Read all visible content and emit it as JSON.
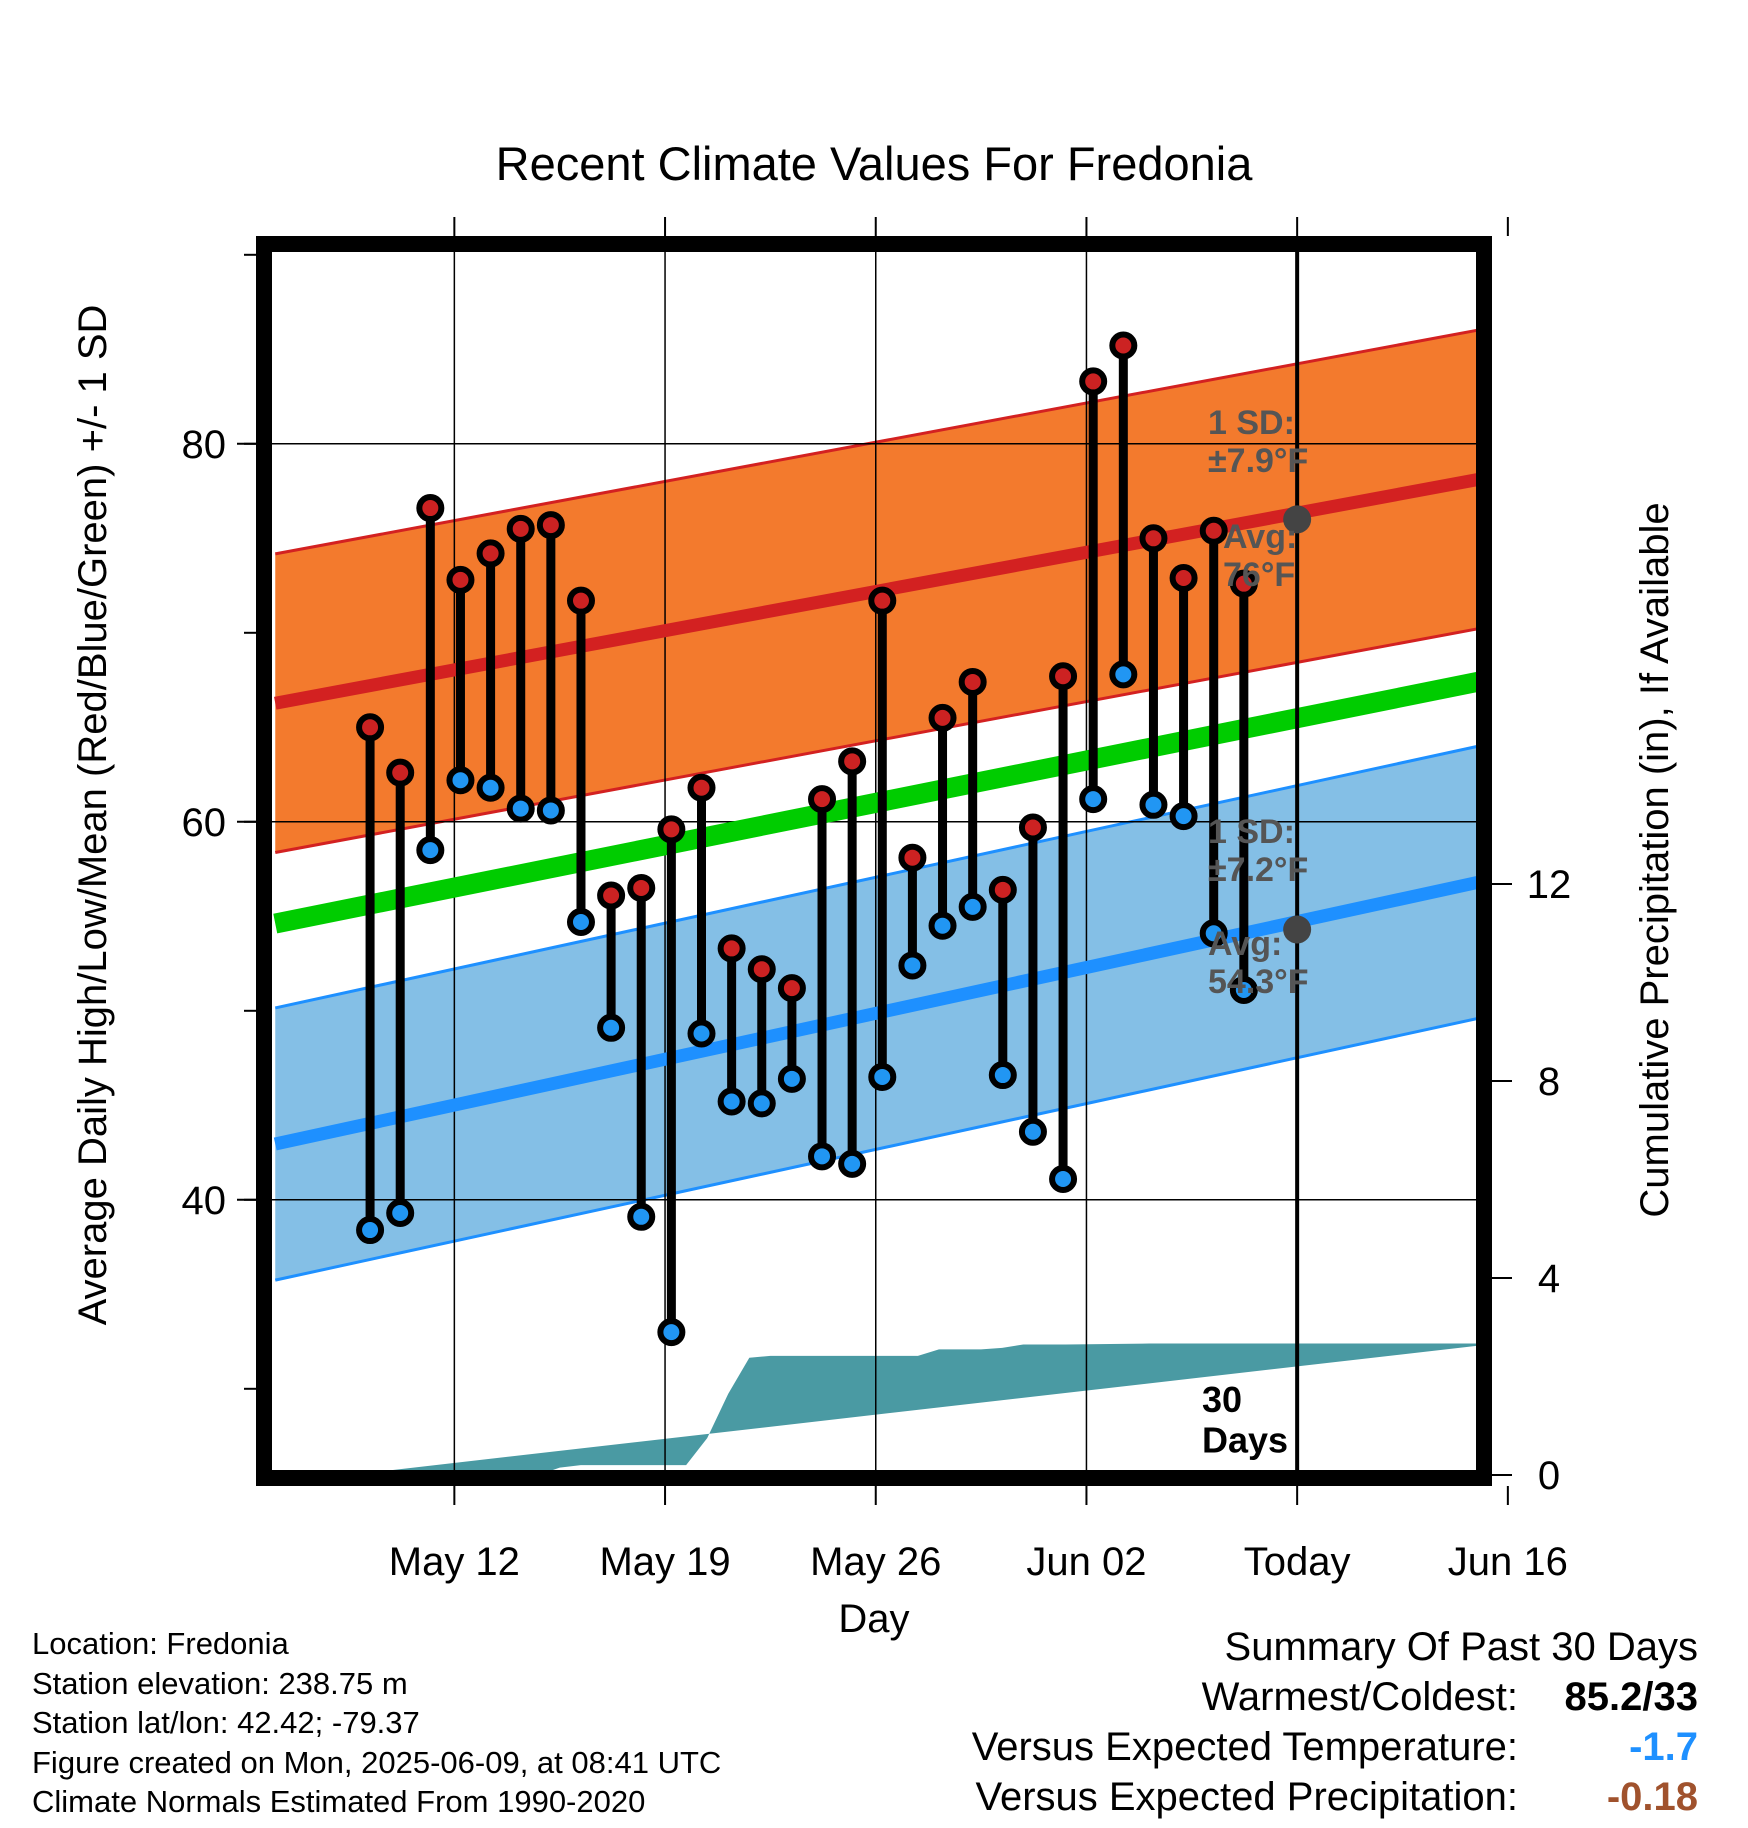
{
  "chart_data": {
    "type": "line",
    "title": "Recent Climate Values For Fredonia",
    "xlabel": "Day",
    "ylabel": "Average Daily High/Low/Mean (Red/Blue/Green) +/- 1 SD",
    "y2label": "Cumulative Precipitation (in), If Available",
    "ylim": [
      25,
      90
    ],
    "y2lim": [
      0,
      30
    ],
    "xlim": [
      -3.5,
      54.5
    ],
    "x_ticks": [
      {
        "x": 5,
        "label": "May 12"
      },
      {
        "x": 15,
        "label": "May 19"
      },
      {
        "x": 25,
        "label": "May 26"
      },
      {
        "x": 35,
        "label": "Jun 02"
      },
      {
        "x": 45,
        "label": "Today"
      },
      {
        "x": 55,
        "label": "Jun 16"
      }
    ],
    "y_ticks": [
      40,
      60,
      80
    ],
    "y2_ticks": [
      0,
      4,
      8,
      12
    ],
    "grid": true,
    "today_x": 45,
    "days_x": [
      1,
      2.43,
      3.86,
      5.29,
      6.72,
      8.15,
      9.58,
      11.01,
      12.44,
      13.87,
      15.3,
      16.73,
      18.16,
      19.59,
      21.02,
      22.45,
      23.88,
      25.31,
      26.74,
      28.17,
      29.6,
      31.03,
      32.46,
      33.89,
      35.32,
      36.75,
      38.18,
      39.61,
      41.04,
      42.47
    ],
    "highs": [
      65,
      62.6,
      76.6,
      72.8,
      74.2,
      75.5,
      75.7,
      71.7,
      56.1,
      56.5,
      59.6,
      61.8,
      53.3,
      52.2,
      51.2,
      61.2,
      63.2,
      71.7,
      58.1,
      65.5,
      67.4,
      56.4,
      59.7,
      67.7,
      83.3,
      85.2,
      75,
      72.9,
      75.4,
      72.6
    ],
    "lows": [
      38.4,
      39.3,
      58.5,
      62.2,
      61.8,
      60.7,
      60.6,
      54.7,
      49.1,
      39.1,
      33,
      48.8,
      45.2,
      45.1,
      46.4,
      42.3,
      41.9,
      46.5,
      52.4,
      54.5,
      55.5,
      46.6,
      43.6,
      41.1,
      61.2,
      67.8,
      60.9,
      60.3,
      54.1,
      51.1
    ],
    "normal_high": {
      "x": [
        0,
        54
      ],
      "values": [
        67,
        78.2
      ]
    },
    "normal_high_sd": 7.9,
    "normal_low": {
      "x": [
        0,
        54
      ],
      "values": [
        43.8,
        56.9
      ]
    },
    "normal_low_sd": 7.2,
    "normal_mean": {
      "x": [
        0,
        54
      ],
      "values": [
        55.4,
        67.5
      ]
    },
    "precip_cumulative": {
      "x": [
        0,
        9,
        10,
        11,
        15,
        16,
        17,
        18,
        19,
        20,
        24,
        26,
        27,
        28,
        30,
        31,
        32,
        34,
        38,
        44,
        54
      ],
      "values": [
        0,
        0,
        0.15,
        0.2,
        0.2,
        0.2,
        0.75,
        1.65,
        2.38,
        2.42,
        2.42,
        2.42,
        2.42,
        2.55,
        2.55,
        2.58,
        2.65,
        2.65,
        2.67,
        2.67,
        2.67
      ]
    },
    "annotations": {
      "high_sd_label": [
        "1 SD:",
        "±7.9°F"
      ],
      "high_avg_label": [
        "Avg:",
        "76°F"
      ],
      "high_avg_value": 76,
      "low_sd_label": [
        "1 SD:",
        "±7.2°F"
      ],
      "low_avg_label": [
        "Avg:",
        "54.3°F"
      ],
      "low_avg_value": 54.3,
      "days_label": [
        "30",
        "Days"
      ]
    },
    "colors": {
      "high_band": "#f37a2d",
      "high_band_edge": "#d32121",
      "high_line": "#d32121",
      "low_band": "#84bfe6",
      "low_band_edge": "#1e90ff",
      "low_line": "#1e90ff",
      "mean_line": "#00cc00",
      "precip": "#4a9aa3",
      "high_dot": "#cc2222",
      "low_dot": "#2196f3",
      "annotation": "#555555"
    }
  },
  "info": {
    "location": "Location: Fredonia",
    "elevation": "Station elevation: 238.75 m",
    "latlon": "Station lat/lon: 42.42; -79.37",
    "created": "Figure created on Mon, 2025-06-09, at 08:41 UTC",
    "normals": "Climate Normals Estimated From 1990-2020"
  },
  "summary": {
    "heading": "Summary Of Past 30 Days",
    "warmest_label": "Warmest/Coldest:",
    "warmest_value": "85.2/33",
    "temp_label": "Versus Expected Temperature:",
    "temp_value": "-1.7",
    "temp_color": "#1e90ff",
    "precip_label": "Versus Expected Precipitation:",
    "precip_value": "-0.18",
    "precip_color": "#a0522d"
  }
}
